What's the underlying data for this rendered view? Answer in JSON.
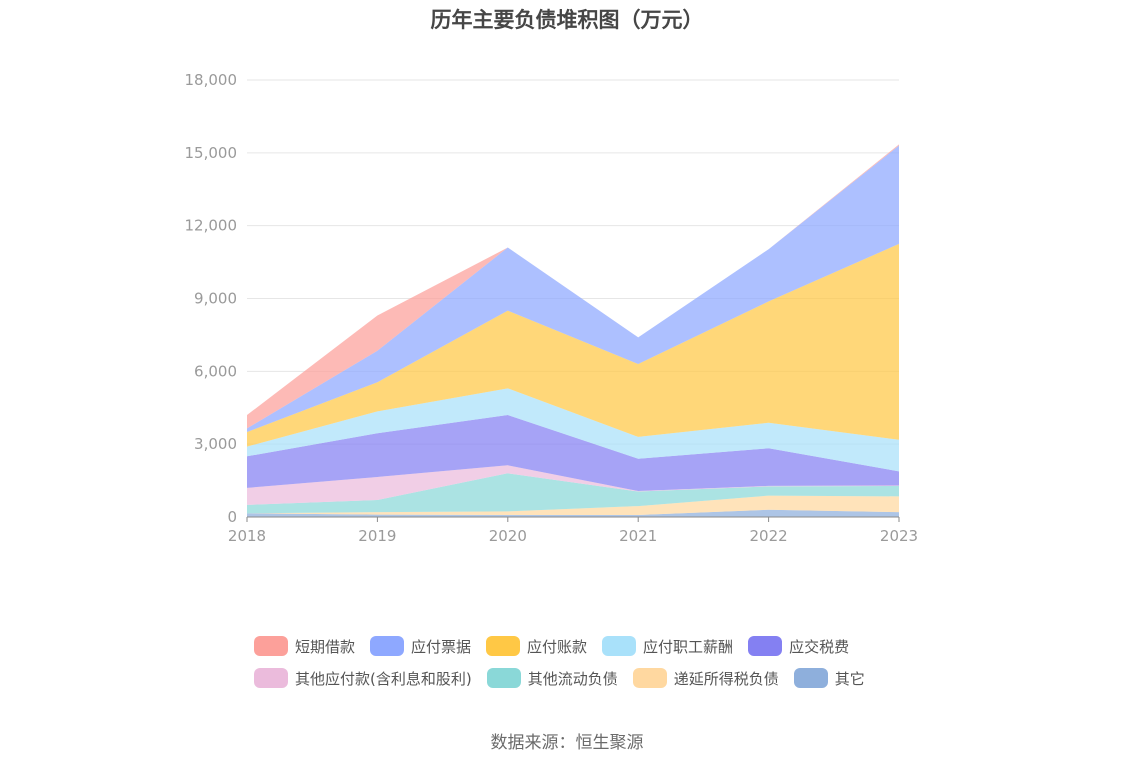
{
  "source_text": "数据来源：恒生聚源",
  "chart_data": {
    "type": "area",
    "stacked": true,
    "title": "历年主要负债堆积图（万元）",
    "xlabel": "",
    "ylabel": "",
    "x": [
      "2018",
      "2019",
      "2020",
      "2021",
      "2022",
      "2023"
    ],
    "ylim": [
      0,
      18000
    ],
    "yticks": [
      0,
      3000,
      6000,
      9000,
      12000,
      15000,
      18000
    ],
    "ytick_labels": [
      "0",
      "3,000",
      "6,000",
      "9,000",
      "12,000",
      "15,000",
      "18,000"
    ],
    "grid": true,
    "legend_position": "bottom",
    "series": [
      {
        "name": "其它",
        "color": "#8eafdc",
        "values": [
          150,
          100,
          80,
          80,
          300,
          200
        ]
      },
      {
        "name": "递延所得税负债",
        "color": "#ffd8a0",
        "values": [
          0,
          100,
          150,
          370,
          580,
          650
        ]
      },
      {
        "name": "其他流动负债",
        "color": "#8ad8d8",
        "values": [
          350,
          500,
          1570,
          600,
          380,
          430
        ]
      },
      {
        "name": "其他应付款(含利息和股利)",
        "color": "#ebbbdc",
        "values": [
          700,
          950,
          330,
          20,
          20,
          20
        ]
      },
      {
        "name": "应交税费",
        "color": "#8480f2",
        "values": [
          1300,
          1800,
          2070,
          1330,
          1550,
          580
        ]
      },
      {
        "name": "应付职工薪酬",
        "color": "#a9e1fa",
        "values": [
          400,
          900,
          1100,
          900,
          1050,
          1300
        ]
      },
      {
        "name": "应付账款",
        "color": "#ffc845",
        "values": [
          600,
          1200,
          3200,
          3000,
          5000,
          8070
        ]
      },
      {
        "name": "应付票据",
        "color": "#8ea8ff",
        "values": [
          150,
          1300,
          2600,
          1100,
          2150,
          4050
        ]
      },
      {
        "name": "短期借款",
        "color": "#fca09a",
        "values": [
          550,
          1450,
          0,
          0,
          0,
          50
        ]
      }
    ]
  },
  "legend_rows": [
    [
      "短期借款",
      "应付票据",
      "应付账款",
      "应付职工薪酬",
      "应交税费"
    ],
    [
      "其他应付款(含利息和股利)",
      "其他流动负债",
      "递延所得税负债",
      "其它"
    ]
  ]
}
